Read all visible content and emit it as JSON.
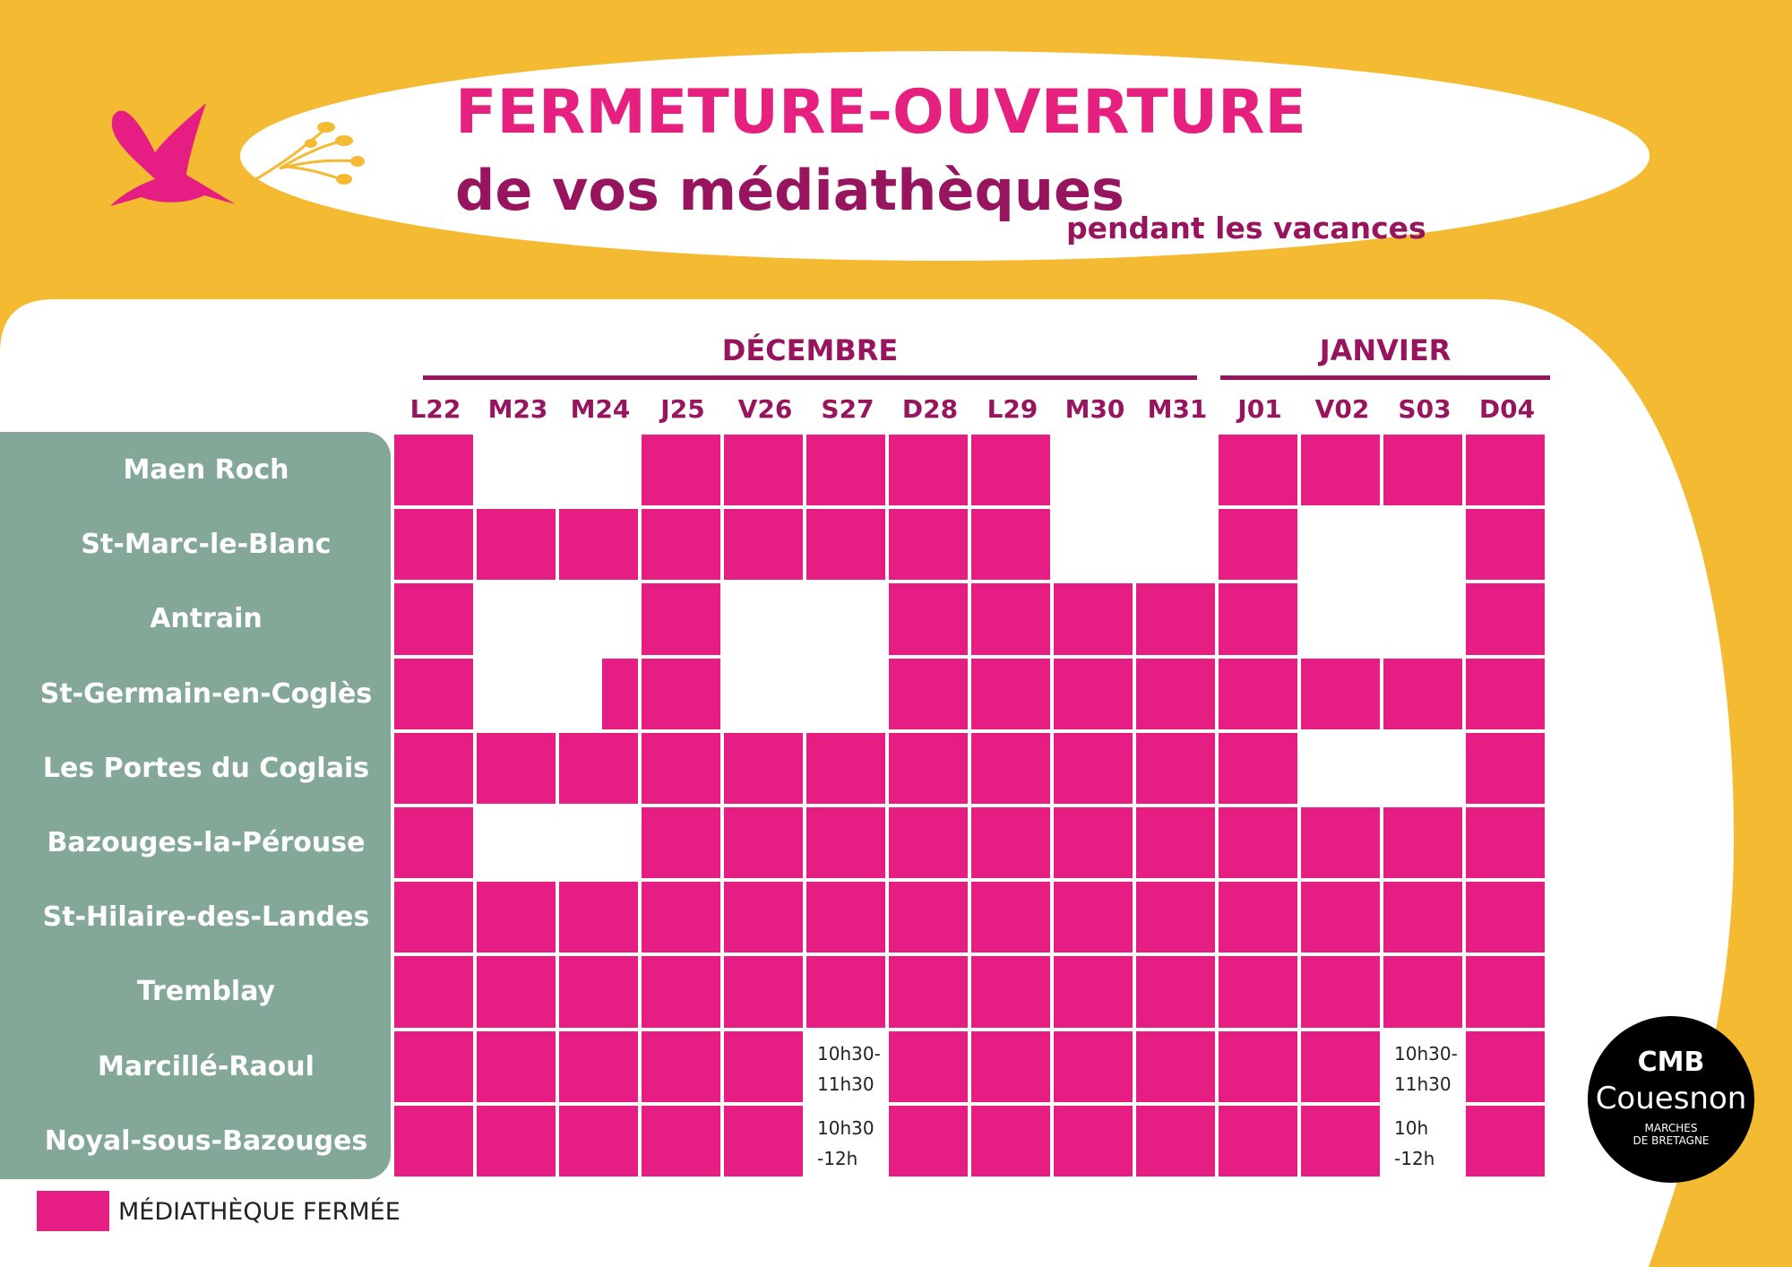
{
  "header": {
    "title": "FERMETURE-OUVERTURE",
    "subtitle": "de vos médiathèques",
    "subtitle2": "pendant les vacances"
  },
  "months": [
    {
      "label": "DÉCEMBRE"
    },
    {
      "label": "JANVIER"
    }
  ],
  "days": [
    "L22",
    "M23",
    "M24",
    "J25",
    "V26",
    "S27",
    "D28",
    "L29",
    "M30",
    "M31",
    "J01",
    "V02",
    "S03",
    "D04"
  ],
  "libraries": [
    {
      "name": "Maen Roch",
      "cells": [
        "closed",
        "open",
        "open",
        "closed",
        "closed",
        "closed",
        "closed",
        "closed",
        "open",
        "open",
        "closed",
        "closed",
        "closed",
        "closed"
      ]
    },
    {
      "name": "St-Marc-le-Blanc",
      "cells": [
        "closed",
        "closed",
        "closed",
        "closed",
        "closed",
        "closed",
        "closed",
        "closed",
        "open",
        "open",
        "closed",
        "open",
        "open",
        "closed"
      ]
    },
    {
      "name": "Antrain",
      "cells": [
        "closed",
        "open",
        "open",
        "closed",
        "open",
        "open",
        "closed",
        "closed",
        "closed",
        "closed",
        "closed",
        "open",
        "open",
        "closed"
      ]
    },
    {
      "name": "St-Germain-en-Coglès",
      "cells": [
        "closed",
        "open",
        "half",
        "closed",
        "open",
        "open",
        "closed",
        "closed",
        "closed",
        "closed",
        "closed",
        "closed",
        "closed",
        "closed"
      ]
    },
    {
      "name": "Les Portes du Coglais",
      "cells": [
        "closed",
        "closed",
        "closed",
        "closed",
        "closed",
        "closed",
        "closed",
        "closed",
        "closed",
        "closed",
        "closed",
        "open",
        "open",
        "closed"
      ]
    },
    {
      "name": "Bazouges-la-Pérouse",
      "cells": [
        "closed",
        "open",
        "open",
        "closed",
        "closed",
        "closed",
        "closed",
        "closed",
        "closed",
        "closed",
        "closed",
        "closed",
        "closed",
        "closed"
      ]
    },
    {
      "name": "St-Hilaire-des-Landes",
      "cells": [
        "closed",
        "closed",
        "closed",
        "closed",
        "closed",
        "closed",
        "closed",
        "closed",
        "closed",
        "closed",
        "closed",
        "closed",
        "closed",
        "closed"
      ]
    },
    {
      "name": "Tremblay",
      "cells": [
        "closed",
        "closed",
        "closed",
        "closed",
        "closed",
        "closed",
        "closed",
        "closed",
        "closed",
        "closed",
        "closed",
        "closed",
        "closed",
        "closed"
      ]
    },
    {
      "name": "Marcillé-Raoul",
      "cells": [
        "closed",
        "closed",
        "closed",
        "closed",
        "closed",
        "10h30-\n11h30",
        "closed",
        "closed",
        "closed",
        "closed",
        "closed",
        "closed",
        "10h30-\n11h30",
        "closed"
      ]
    },
    {
      "name": "Noyal-sous-Bazouges",
      "cells": [
        "closed",
        "closed",
        "closed",
        "closed",
        "closed",
        "10h30\n-12h",
        "closed",
        "closed",
        "closed",
        "closed",
        "closed",
        "closed",
        "10h\n-12h",
        "closed"
      ]
    }
  ],
  "legend": {
    "label": "MÉDIATHÈQUE FERMÉE",
    "color": "#E61D82"
  },
  "logo": {
    "mark": "CMB",
    "name": "Couesnon",
    "tagline1": "MARCHES",
    "tagline2": "DE BRETAGNE"
  }
}
